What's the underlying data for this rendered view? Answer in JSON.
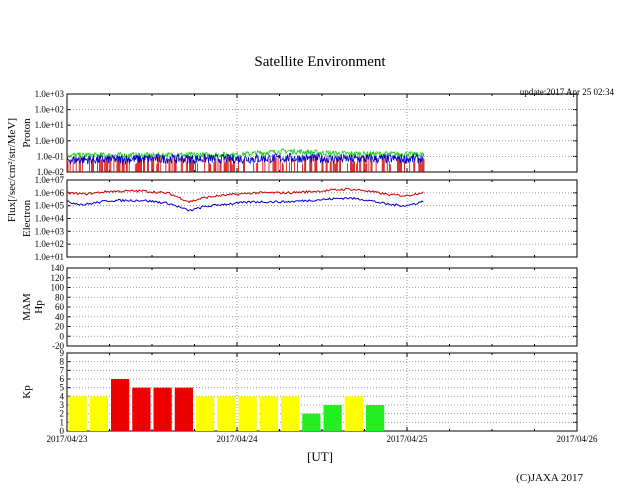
{
  "title": "Satellite Environment",
  "update": "update:2017 Apr 25 02:34",
  "copyright": "(C)JAXA 2017",
  "xlabel": "[UT]",
  "x_ticks": [
    "2017/04/23",
    "2017/04/24",
    "2017/04/25",
    "2017/04/26"
  ],
  "flux_label": "Flux[/sec/cm²/str/MeV]",
  "colors": {
    "proton_high": "#22cc22",
    "proton_low": "#0000cc",
    "proton_spikes": "#cc0000",
    "electron_high": "#cc0000",
    "electron_low": "#0000cc",
    "kp_red": "#ee0000",
    "kp_yellow": "#ffff00",
    "kp_green": "#22ee22",
    "grid": "#888888"
  },
  "chart_data": [
    {
      "type": "line",
      "panel": "proton",
      "ylabel": "Proton",
      "yscale": "log",
      "ylim_exp": [
        -2,
        3
      ],
      "y_ticks": [
        "1.0e-02",
        "1.0e-01",
        "1.0e+00",
        "1.0e+01",
        "1.0e+02",
        "1.0e+03"
      ],
      "xlim_days": [
        0,
        3
      ],
      "series": [
        {
          "points": [
            [
              0,
              0.12
            ],
            [
              0.5,
              0.12
            ],
            [
              1.0,
              0.13
            ],
            [
              1.3,
              0.22
            ],
            [
              1.6,
              0.15
            ],
            [
              2.0,
              0.14
            ],
            [
              2.1,
              0.13
            ]
          ]
        },
        {
          "points": [
            [
              0,
              0.06
            ],
            [
              0.5,
              0.07
            ],
            [
              1.0,
              0.07
            ],
            [
              1.3,
              0.08
            ],
            [
              1.6,
              0.07
            ],
            [
              2.0,
              0.07
            ],
            [
              2.1,
              0.07
            ]
          ]
        }
      ]
    },
    {
      "type": "line",
      "panel": "electron",
      "ylabel": "Electron",
      "yscale": "log",
      "ylim_exp": [
        1,
        7
      ],
      "y_ticks": [
        "1.0e+01",
        "1.0e+02",
        "1.0e+03",
        "1.0e+04",
        "1.0e+05",
        "1.0e+06",
        "1.0e+07"
      ],
      "xlim_days": [
        0,
        3
      ],
      "series": [
        {
          "points": [
            [
              0,
              1000000
            ],
            [
              0.1,
              800000
            ],
            [
              0.25,
              1300000
            ],
            [
              0.45,
              1400000
            ],
            [
              0.6,
              900000
            ],
            [
              0.72,
              200000
            ],
            [
              0.8,
              400000
            ],
            [
              0.9,
              600000
            ],
            [
              1.1,
              1000000
            ],
            [
              1.3,
              1000000
            ],
            [
              1.5,
              1400000
            ],
            [
              1.65,
              2000000
            ],
            [
              1.75,
              1500000
            ],
            [
              1.9,
              700000
            ],
            [
              2.0,
              600000
            ],
            [
              2.1,
              1200000
            ]
          ]
        },
        {
          "points": [
            [
              0,
              200000
            ],
            [
              0.1,
              120000
            ],
            [
              0.25,
              250000
            ],
            [
              0.45,
              260000
            ],
            [
              0.6,
              150000
            ],
            [
              0.72,
              40000
            ],
            [
              0.8,
              80000
            ],
            [
              0.9,
              120000
            ],
            [
              1.1,
              200000
            ],
            [
              1.3,
              200000
            ],
            [
              1.5,
              300000
            ],
            [
              1.65,
              400000
            ],
            [
              1.75,
              300000
            ],
            [
              1.9,
              120000
            ],
            [
              2.0,
              100000
            ],
            [
              2.1,
              220000
            ]
          ]
        }
      ]
    },
    {
      "type": "line",
      "panel": "mam",
      "ylabel": "MAM Hp [nT]",
      "ylim": [
        -20,
        140
      ],
      "y_ticks": [
        "-20",
        "0",
        "20",
        "40",
        "60",
        "80",
        "100",
        "120",
        "140"
      ],
      "xlim_days": [
        0,
        3
      ],
      "series": []
    },
    {
      "type": "bar",
      "panel": "kp",
      "ylabel": "Kp",
      "ylim": [
        0,
        9
      ],
      "y_ticks": [
        "0",
        "1",
        "2",
        "3",
        "4",
        "5",
        "6",
        "7",
        "8",
        "9"
      ],
      "xlim_days": [
        0,
        3
      ],
      "bar_width_days": 0.125,
      "values": [
        4,
        4,
        6,
        5,
        5,
        5,
        4,
        4,
        4,
        4,
        4,
        2,
        3,
        4,
        3
      ],
      "bar_colors": [
        "yellow",
        "yellow",
        "red",
        "red",
        "red",
        "red",
        "yellow",
        "yellow",
        "yellow",
        "yellow",
        "yellow",
        "green",
        "green",
        "yellow",
        "green"
      ]
    }
  ]
}
